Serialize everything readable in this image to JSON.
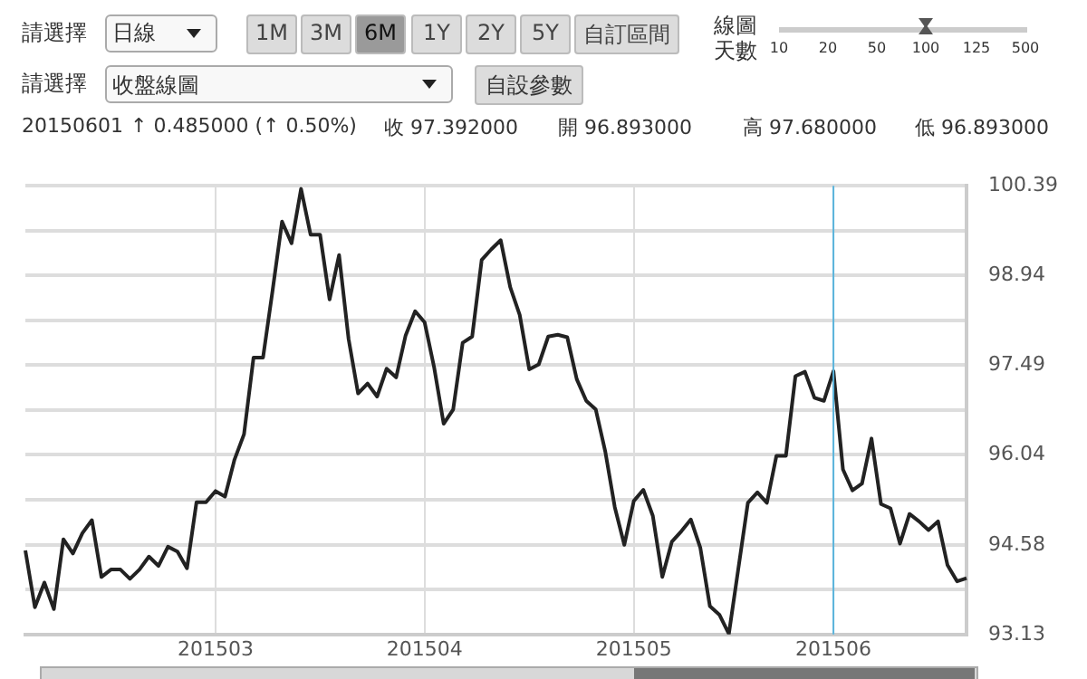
{
  "chart_data": {
    "type": "line",
    "categories": [
      null,
      null,
      null,
      null,
      null,
      null,
      null,
      null,
      null,
      null,
      null,
      null,
      null,
      null,
      null,
      null,
      null,
      null,
      null,
      null,
      "201503",
      null,
      null,
      null,
      null,
      null,
      null,
      null,
      null,
      null,
      null,
      null,
      null,
      null,
      null,
      null,
      null,
      null,
      null,
      null,
      null,
      null,
      "201504",
      null,
      null,
      null,
      null,
      null,
      null,
      null,
      null,
      null,
      null,
      null,
      null,
      null,
      null,
      null,
      null,
      null,
      null,
      null,
      null,
      null,
      "201505",
      null,
      null,
      null,
      null,
      null,
      null,
      null,
      null,
      null,
      null,
      null,
      null,
      null,
      null,
      null,
      null,
      null,
      null,
      null,
      null,
      "201506",
      null,
      null,
      null,
      null,
      null,
      null,
      null,
      null,
      null,
      null,
      null,
      null,
      null,
      null
    ],
    "series": [
      {
        "color": "#222222",
        "values": [
          94.49,
          93.57,
          93.97,
          93.54,
          94.67,
          94.44,
          94.77,
          94.98,
          94.06,
          94.18,
          94.18,
          94.03,
          94.18,
          94.39,
          94.24,
          94.55,
          94.47,
          94.2,
          95.27,
          95.27,
          95.45,
          95.36,
          95.96,
          96.37,
          97.61,
          97.61,
          98.69,
          99.81,
          99.46,
          100.34,
          99.6,
          99.6,
          98.55,
          99.27,
          97.91,
          97.03,
          97.19,
          96.98,
          97.43,
          97.29,
          97.97,
          98.36,
          98.18,
          97.45,
          96.54,
          96.77,
          97.85,
          97.95,
          99.19,
          99.36,
          99.51,
          98.75,
          98.3,
          97.42,
          97.5,
          97.95,
          97.98,
          97.94,
          97.26,
          96.91,
          96.77,
          96.09,
          95.19,
          94.58,
          95.29,
          95.47,
          95.05,
          94.06,
          94.63,
          94.8,
          94.99,
          94.53,
          93.59,
          93.45,
          93.14,
          94.2,
          95.26,
          95.43,
          95.26,
          96.02,
          96.02,
          97.31,
          97.38,
          96.96,
          96.91,
          97.39,
          95.8,
          95.46,
          95.57,
          96.3,
          95.24,
          95.17,
          94.6,
          95.08,
          94.96,
          94.82,
          94.96,
          94.25,
          93.99,
          94.04
        ]
      }
    ],
    "ylim": [
      93.13,
      100.39
    ],
    "yticks": [
      93.13,
      {
        "value": 93.855,
        "label": null
      },
      94.58,
      {
        "value": 95.31,
        "label": null
      },
      96.04,
      {
        "value": 96.765,
        "label": null
      },
      97.49,
      {
        "value": 98.215,
        "label": null
      },
      98.94,
      {
        "value": 99.665,
        "label": null
      },
      100.39
    ],
    "grid": true,
    "legend": false,
    "marker": "none",
    "line_style": "solid",
    "ref_lines": [
      {
        "axis": "x",
        "value": "201506",
        "color": "#5ab4dc"
      }
    ],
    "annotations": [
      "請選擇",
      "日線",
      "1M",
      "3M",
      "6M",
      "1Y",
      "2Y",
      "5Y",
      "自訂區間",
      "線圖",
      "天數",
      "10",
      "20",
      "50",
      "100",
      "125",
      "500",
      "請選擇",
      "收盤線圖",
      "自設參數",
      "20150601",
      "↑ 0.485000 (↑ 0.50%)",
      "收 97.392000",
      "開 96.893000",
      "高 97.680000",
      "低 96.893000"
    ]
  }
}
